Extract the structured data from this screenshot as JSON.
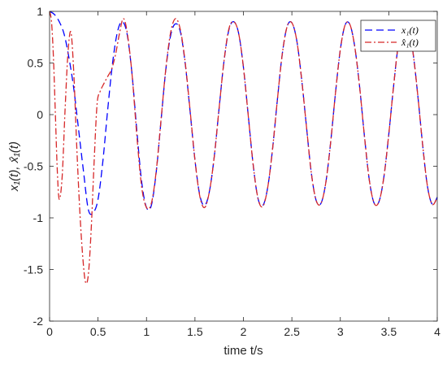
{
  "chart_data": {
    "type": "line",
    "title": "",
    "xlabel": "time t/s",
    "ylabel": "x₁(t), x̂₁(t)",
    "xlim": [
      0,
      4
    ],
    "ylim": [
      -2,
      1
    ],
    "xticks": [
      0,
      0.5,
      1,
      1.5,
      2,
      2.5,
      3,
      3.5,
      4
    ],
    "xtick_labels": [
      "0",
      "0.5",
      "1",
      "1.5",
      "2",
      "2.5",
      "3",
      "3.5",
      "4"
    ],
    "yticks": [
      -2,
      -1.5,
      -1,
      -0.5,
      0,
      0.5,
      1
    ],
    "ytick_labels": [
      "-2",
      "-1.5",
      "-1",
      "-0.5",
      "0",
      "0.5",
      "1"
    ],
    "grid": false,
    "legend": "top-right",
    "series": [
      {
        "name": "x₁(t)",
        "color": "#0000ff",
        "style": "dashed",
        "x": [
          0,
          0.05,
          0.1,
          0.15,
          0.2,
          0.25,
          0.3,
          0.35,
          0.4,
          0.45,
          0.5,
          0.55,
          0.6,
          0.65,
          0.7,
          0.75,
          0.8,
          0.85,
          0.9,
          0.95,
          1.0,
          1.05,
          1.1,
          1.15,
          1.2,
          1.25,
          1.3,
          1.35,
          1.4,
          1.45,
          1.5,
          1.55,
          1.6,
          1.65,
          1.7,
          1.75,
          1.8,
          1.85,
          1.9,
          1.95,
          2.0,
          2.05,
          2.1,
          2.15,
          2.2,
          2.25,
          2.3,
          2.35,
          2.4,
          2.45,
          2.5,
          2.55,
          2.6,
          2.65,
          2.7,
          2.75,
          2.8,
          2.85,
          2.9,
          2.95,
          3.0,
          3.05,
          3.1,
          3.15,
          3.2,
          3.25,
          3.3,
          3.35,
          3.4,
          3.45,
          3.5,
          3.55,
          3.6,
          3.65,
          3.7,
          3.75,
          3.8,
          3.85,
          3.9,
          3.95,
          4.0
        ],
        "y": [
          1.0,
          0.97,
          0.9,
          0.78,
          0.55,
          0.25,
          -0.15,
          -0.55,
          -0.92,
          -0.95,
          -0.82,
          -0.45,
          0.05,
          0.5,
          0.8,
          0.9,
          0.78,
          0.4,
          -0.15,
          -0.65,
          -0.9,
          -0.88,
          -0.56,
          -0.06,
          0.44,
          0.77,
          0.88,
          0.8,
          0.49,
          0.03,
          -0.44,
          -0.78,
          -0.88,
          -0.74,
          -0.4,
          0.07,
          0.52,
          0.82,
          0.9,
          0.79,
          0.46,
          -0.01,
          -0.48,
          -0.81,
          -0.88,
          -0.71,
          -0.34,
          0.14,
          0.58,
          0.85,
          0.89,
          0.72,
          0.35,
          -0.11,
          -0.56,
          -0.83,
          -0.86,
          -0.66,
          -0.27,
          0.21,
          0.63,
          0.87,
          0.87,
          0.65,
          0.26,
          -0.22,
          -0.64,
          -0.86,
          -0.84,
          -0.6,
          -0.19,
          0.28,
          0.69,
          0.89,
          0.85,
          0.6,
          0.18,
          -0.3,
          -0.7,
          -0.87,
          -0.8
        ]
      },
      {
        "name": "x̂₁(t)",
        "color": "#d62728",
        "style": "dashdot",
        "x": [
          0,
          0.02,
          0.04,
          0.06,
          0.08,
          0.1,
          0.13,
          0.16,
          0.19,
          0.22,
          0.25,
          0.28,
          0.31,
          0.34,
          0.37,
          0.4,
          0.43,
          0.46,
          0.49,
          0.52,
          0.56,
          0.6,
          0.64,
          0.68,
          0.72,
          0.76,
          0.8,
          0.85,
          0.9,
          0.95,
          1.0,
          1.05,
          1.1,
          1.15,
          1.2,
          1.25,
          1.3,
          1.35,
          1.4,
          1.45,
          1.5,
          1.55,
          1.6,
          1.65,
          1.7,
          1.75,
          1.8,
          1.85,
          1.9,
          1.95,
          2.0,
          2.05,
          2.1,
          2.15,
          2.2,
          2.25,
          2.3,
          2.35,
          2.4,
          2.45,
          2.5,
          2.55,
          2.6,
          2.65,
          2.7,
          2.75,
          2.8,
          2.85,
          2.9,
          2.95,
          3.0,
          3.05,
          3.1,
          3.15,
          3.2,
          3.25,
          3.3,
          3.35,
          3.4,
          3.45,
          3.5,
          3.55,
          3.6,
          3.65,
          3.7,
          3.75,
          3.8,
          3.85,
          3.9,
          3.95,
          4.0
        ],
        "y": [
          1.0,
          0.9,
          0.55,
          0.0,
          -0.55,
          -0.82,
          -0.6,
          0.05,
          0.6,
          0.8,
          0.4,
          -0.3,
          -0.9,
          -1.35,
          -1.62,
          -1.55,
          -1.1,
          -0.45,
          0.1,
          0.22,
          0.3,
          0.37,
          0.44,
          0.58,
          0.78,
          0.93,
          0.8,
          0.4,
          -0.2,
          -0.7,
          -0.9,
          -0.86,
          -0.55,
          -0.05,
          0.45,
          0.8,
          0.93,
          0.82,
          0.5,
          0.04,
          -0.44,
          -0.79,
          -0.9,
          -0.74,
          -0.4,
          0.07,
          0.52,
          0.83,
          0.9,
          0.79,
          0.46,
          -0.01,
          -0.48,
          -0.81,
          -0.89,
          -0.71,
          -0.34,
          0.14,
          0.58,
          0.85,
          0.89,
          0.72,
          0.35,
          -0.11,
          -0.56,
          -0.83,
          -0.86,
          -0.66,
          -0.27,
          0.21,
          0.63,
          0.87,
          0.87,
          0.65,
          0.26,
          -0.22,
          -0.64,
          -0.86,
          -0.84,
          -0.6,
          -0.19,
          0.28,
          0.69,
          0.89,
          0.85,
          0.6,
          0.18,
          -0.3,
          -0.7,
          -0.87,
          -0.8
        ]
      }
    ]
  }
}
